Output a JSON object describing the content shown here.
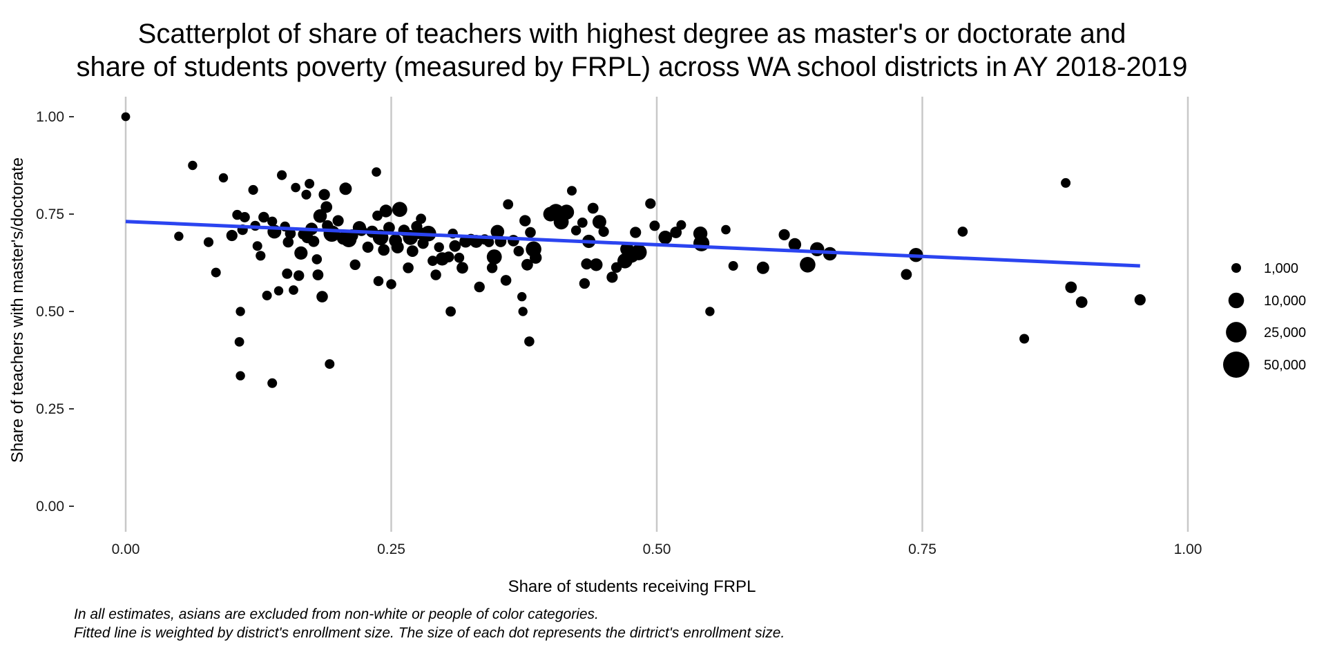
{
  "chart_data": {
    "type": "scatter",
    "title": [
      "Scatterplot of share of teachers with highest degree as master's or doctorate and",
      "share of students poverty (measured by FRPL) across WA school districts in AY 2018-2019"
    ],
    "xlabel": "Share of students receiving FRPL",
    "ylabel": "Share of teachers with master's/doctorate",
    "xlim": [
      0,
      1
    ],
    "ylim": [
      0,
      1
    ],
    "x_ticks": [
      0,
      0.25,
      0.5,
      0.75,
      1
    ],
    "x_tick_labels": [
      "0.00",
      "0.25",
      "0.50",
      "0.75",
      "1.00"
    ],
    "y_ticks": [
      0,
      0.25,
      0.5,
      0.75,
      1
    ],
    "y_tick_labels": [
      "0.00",
      "0.25",
      "0.50",
      "0.75",
      "1.00"
    ],
    "grid": "vertical major lines only",
    "legend": {
      "placement": "right",
      "entries": [
        {
          "value": 1000,
          "label": "1,000"
        },
        {
          "value": 10000,
          "label": "10,000"
        },
        {
          "value": 25000,
          "label": "25,000"
        },
        {
          "value": 50000,
          "label": "50,000"
        }
      ]
    },
    "point_color": "#000000",
    "fit_line": {
      "color": "#2b44f0",
      "x": [
        0.0,
        0.955
      ],
      "y": [
        0.731,
        0.617
      ]
    },
    "points": [
      [
        0.0,
        1.0,
        500
      ],
      [
        0.05,
        0.693,
        700
      ],
      [
        0.063,
        0.875,
        700
      ],
      [
        0.078,
        0.678,
        1100
      ],
      [
        0.085,
        0.6,
        1000
      ],
      [
        0.092,
        0.843,
        700
      ],
      [
        0.1,
        0.695,
        2500
      ],
      [
        0.105,
        0.748,
        1200
      ],
      [
        0.107,
        0.422,
        900
      ],
      [
        0.108,
        0.5,
        700
      ],
      [
        0.108,
        0.335,
        700
      ],
      [
        0.11,
        0.71,
        1700
      ],
      [
        0.112,
        0.742,
        1600
      ],
      [
        0.12,
        0.812,
        1100
      ],
      [
        0.122,
        0.72,
        1200
      ],
      [
        0.124,
        0.668,
        1000
      ],
      [
        0.127,
        0.643,
        1100
      ],
      [
        0.13,
        0.742,
        2000
      ],
      [
        0.133,
        0.541,
        1000
      ],
      [
        0.138,
        0.731,
        1100
      ],
      [
        0.138,
        0.316,
        1000
      ],
      [
        0.14,
        0.705,
        6500
      ],
      [
        0.144,
        0.553,
        700
      ],
      [
        0.147,
        0.85,
        1100
      ],
      [
        0.15,
        0.718,
        1200
      ],
      [
        0.152,
        0.597,
        1600
      ],
      [
        0.153,
        0.678,
        2000
      ],
      [
        0.155,
        0.7,
        2000
      ],
      [
        0.158,
        0.555,
        900
      ],
      [
        0.16,
        0.818,
        800
      ],
      [
        0.163,
        0.592,
        1900
      ],
      [
        0.165,
        0.65,
        5500
      ],
      [
        0.167,
        0.698,
        1500
      ],
      [
        0.17,
        0.8,
        1100
      ],
      [
        0.171,
        0.69,
        3000
      ],
      [
        0.173,
        0.828,
        1000
      ],
      [
        0.175,
        0.712,
        4000
      ],
      [
        0.177,
        0.68,
        2500
      ],
      [
        0.18,
        0.634,
        1300
      ],
      [
        0.181,
        0.594,
        2200
      ],
      [
        0.183,
        0.745,
        6000
      ],
      [
        0.185,
        0.538,
        2800
      ],
      [
        0.187,
        0.8,
        2600
      ],
      [
        0.189,
        0.768,
        3000
      ],
      [
        0.19,
        0.72,
        2500
      ],
      [
        0.192,
        0.365,
        1000
      ],
      [
        0.194,
        0.7,
        12000
      ],
      [
        0.2,
        0.733,
        2500
      ],
      [
        0.205,
        0.688,
        5000
      ],
      [
        0.207,
        0.815,
        4000
      ],
      [
        0.21,
        0.685,
        10000
      ],
      [
        0.213,
        0.695,
        4000
      ],
      [
        0.216,
        0.62,
        1800
      ],
      [
        0.22,
        0.715,
        5500
      ],
      [
        0.222,
        0.708,
        2500
      ],
      [
        0.228,
        0.665,
        2500
      ],
      [
        0.232,
        0.705,
        3500
      ],
      [
        0.236,
        0.858,
        800
      ],
      [
        0.237,
        0.746,
        1500
      ],
      [
        0.238,
        0.578,
        1400
      ],
      [
        0.24,
        0.69,
        10000
      ],
      [
        0.243,
        0.658,
        3000
      ],
      [
        0.245,
        0.758,
        4500
      ],
      [
        0.248,
        0.715,
        3000
      ],
      [
        0.25,
        0.57,
        1400
      ],
      [
        0.254,
        0.682,
        5000
      ],
      [
        0.256,
        0.665,
        4000
      ],
      [
        0.258,
        0.762,
        9000
      ],
      [
        0.262,
        0.708,
        3000
      ],
      [
        0.266,
        0.612,
        2000
      ],
      [
        0.268,
        0.69,
        9000
      ],
      [
        0.27,
        0.655,
        3000
      ],
      [
        0.274,
        0.718,
        2500
      ],
      [
        0.276,
        0.702,
        4000
      ],
      [
        0.278,
        0.738,
        1500
      ],
      [
        0.28,
        0.675,
        2500
      ],
      [
        0.285,
        0.7,
        10000
      ],
      [
        0.289,
        0.63,
        1500
      ],
      [
        0.292,
        0.594,
        1800
      ],
      [
        0.295,
        0.665,
        1200
      ],
      [
        0.298,
        0.635,
        5500
      ],
      [
        0.304,
        0.64,
        2200
      ],
      [
        0.306,
        0.5,
        1500
      ],
      [
        0.308,
        0.7,
        1200
      ],
      [
        0.31,
        0.668,
        3000
      ],
      [
        0.314,
        0.638,
        1300
      ],
      [
        0.317,
        0.612,
        3000
      ],
      [
        0.32,
        0.68,
        4000
      ],
      [
        0.325,
        0.685,
        2500
      ],
      [
        0.33,
        0.68,
        5000
      ],
      [
        0.333,
        0.563,
        1800
      ],
      [
        0.338,
        0.685,
        1600
      ],
      [
        0.342,
        0.678,
        1300
      ],
      [
        0.345,
        0.612,
        1800
      ],
      [
        0.347,
        0.64,
        9000
      ],
      [
        0.35,
        0.705,
        6000
      ],
      [
        0.353,
        0.68,
        3000
      ],
      [
        0.358,
        0.58,
        2000
      ],
      [
        0.36,
        0.775,
        1500
      ],
      [
        0.365,
        0.682,
        2800
      ],
      [
        0.37,
        0.655,
        1700
      ],
      [
        0.373,
        0.538,
        700
      ],
      [
        0.374,
        0.5,
        700
      ],
      [
        0.376,
        0.733,
        2600
      ],
      [
        0.378,
        0.62,
        3000
      ],
      [
        0.38,
        0.423,
        1300
      ],
      [
        0.381,
        0.703,
        2000
      ],
      [
        0.384,
        0.66,
        10000
      ],
      [
        0.386,
        0.638,
        3500
      ],
      [
        0.4,
        0.75,
        8000
      ],
      [
        0.405,
        0.755,
        12000
      ],
      [
        0.41,
        0.73,
        9000
      ],
      [
        0.415,
        0.755,
        9000
      ],
      [
        0.42,
        0.81,
        1000
      ],
      [
        0.424,
        0.708,
        1200
      ],
      [
        0.43,
        0.728,
        1500
      ],
      [
        0.432,
        0.572,
        1800
      ],
      [
        0.434,
        0.622,
        2500
      ],
      [
        0.436,
        0.68,
        5500
      ],
      [
        0.44,
        0.765,
        2200
      ],
      [
        0.443,
        0.62,
        4500
      ],
      [
        0.446,
        0.73,
        6500
      ],
      [
        0.45,
        0.705,
        1700
      ],
      [
        0.458,
        0.588,
        2500
      ],
      [
        0.462,
        0.613,
        1800
      ],
      [
        0.47,
        0.63,
        9000
      ],
      [
        0.472,
        0.66,
        6000
      ],
      [
        0.476,
        0.645,
        10000
      ],
      [
        0.48,
        0.703,
        2500
      ],
      [
        0.483,
        0.652,
        11000
      ],
      [
        0.494,
        0.777,
        1700
      ],
      [
        0.498,
        0.72,
        1600
      ],
      [
        0.508,
        0.69,
        6000
      ],
      [
        0.518,
        0.703,
        3000
      ],
      [
        0.523,
        0.722,
        1000
      ],
      [
        0.541,
        0.7,
        7000
      ],
      [
        0.542,
        0.675,
        11000
      ],
      [
        0.55,
        0.5,
        700
      ],
      [
        0.565,
        0.71,
        800
      ],
      [
        0.572,
        0.617,
        1000
      ],
      [
        0.6,
        0.612,
        4000
      ],
      [
        0.62,
        0.697,
        2500
      ],
      [
        0.63,
        0.672,
        4500
      ],
      [
        0.642,
        0.62,
        10000
      ],
      [
        0.651,
        0.66,
        7000
      ],
      [
        0.663,
        0.648,
        6000
      ],
      [
        0.735,
        0.595,
        2200
      ],
      [
        0.744,
        0.645,
        7000
      ],
      [
        0.788,
        0.705,
        1300
      ],
      [
        0.846,
        0.43,
        1000
      ],
      [
        0.885,
        0.83,
        1000
      ],
      [
        0.89,
        0.562,
        3000
      ],
      [
        0.9,
        0.524,
        3000
      ],
      [
        0.955,
        0.53,
        2500
      ]
    ]
  }
}
